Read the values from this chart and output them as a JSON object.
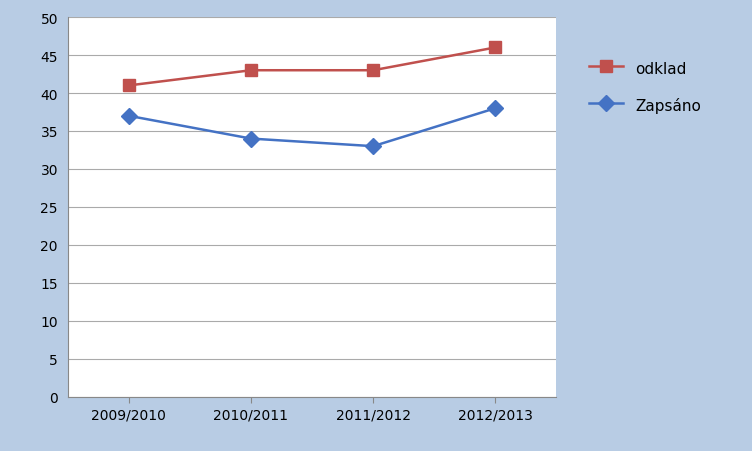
{
  "categories": [
    "2009/2010",
    "2010/2011",
    "2011/2012",
    "2012/2013"
  ],
  "odklad": [
    41,
    43,
    43,
    46
  ],
  "zapsano": [
    37,
    34,
    33,
    38
  ],
  "odklad_color": "#C0504D",
  "zapsano_color": "#4472C4",
  "background_color": "#B8CCE4",
  "plot_bg_color": "#FFFFFF",
  "ylim": [
    0,
    50
  ],
  "yticks": [
    0,
    5,
    10,
    15,
    20,
    25,
    30,
    35,
    40,
    45,
    50
  ],
  "legend_odklad": "odklad",
  "legend_zapsano": "Zapsáno",
  "marker_odklad": "s",
  "marker_zapsano": "D",
  "linewidth": 1.8,
  "markersize": 8,
  "xlim": [
    -0.5,
    3.5
  ]
}
